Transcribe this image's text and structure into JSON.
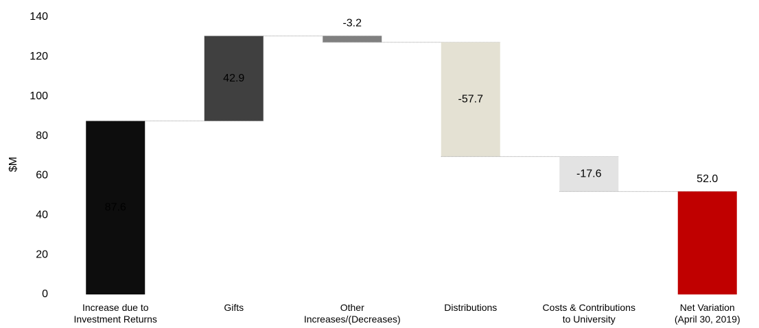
{
  "chart_data": {
    "type": "waterfall",
    "y_label": "$M",
    "categories": [
      "Increase due to\nInvestment Returns",
      "Gifts",
      "Other\nIncreases/(Decreases)",
      "Distributions",
      "Costs & Contributions\nto University",
      "Net Variation\n(April 30, 2019)"
    ],
    "values": [
      87.6,
      42.9,
      -3.2,
      -57.7,
      -17.6,
      52.0
    ],
    "value_labels": [
      "87.6",
      "42.9",
      "-3.2",
      "-57.7",
      "-17.6",
      "52.0"
    ],
    "total": [
      false,
      false,
      false,
      false,
      false,
      true
    ],
    "colors": [
      "#0d0d0d",
      "#404040",
      "#808080",
      "#e4e1d3",
      "#e3e3e3",
      "#c00000"
    ],
    "ylim": [
      0,
      140
    ],
    "yticks": [
      0,
      20,
      40,
      60,
      80,
      100,
      120,
      140
    ],
    "grid": false
  }
}
